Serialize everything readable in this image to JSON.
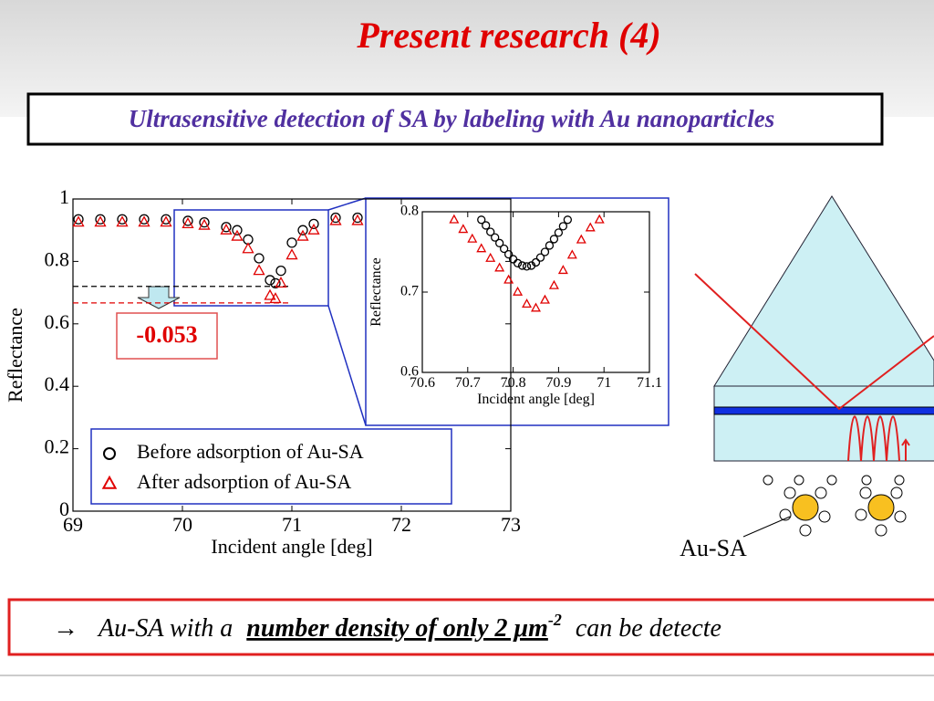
{
  "slide": {
    "title": "Present research (4)",
    "subtitle": "Ultrasensitive detection of SA by labeling with Au nanoparticles",
    "diagram_label": "Au-SA",
    "note": {
      "arrow": "→",
      "lead": "Au-SA with a",
      "emphasis": "number density of only 2 μm",
      "superscript": "-2",
      "tail": "can be detecte"
    }
  },
  "chart_data": [
    {
      "type": "scatter",
      "xlabel": "Incident angle [deg]",
      "ylabel": "Reflectance",
      "xlim": [
        69,
        73
      ],
      "ylim": [
        0,
        1
      ],
      "xticks": [
        69,
        70,
        71,
        72,
        73
      ],
      "yticks": [
        0,
        0.2,
        0.4,
        0.6,
        0.8,
        1
      ],
      "legend": "lower center",
      "annotation": "-0.053",
      "hlines": [
        {
          "value": 0.72,
          "color": "#000000"
        },
        {
          "value": 0.667,
          "color": "#e00000"
        }
      ],
      "series": [
        {
          "name": "Before adsorption of Au-SA",
          "color": "#000000",
          "marker": "circle",
          "x": [
            69.05,
            69.25,
            69.45,
            69.65,
            69.85,
            70.05,
            70.2,
            70.4,
            70.5,
            70.6,
            70.7,
            70.8,
            70.85,
            70.9,
            71.0,
            71.1,
            71.2,
            71.4,
            71.6
          ],
          "values": [
            0.935,
            0.935,
            0.935,
            0.935,
            0.935,
            0.93,
            0.925,
            0.91,
            0.9,
            0.87,
            0.81,
            0.74,
            0.73,
            0.77,
            0.86,
            0.9,
            0.92,
            0.94,
            0.94
          ]
        },
        {
          "name": "After adsorption of Au-SA",
          "color": "#e00000",
          "marker": "triangle",
          "x": [
            69.05,
            69.25,
            69.45,
            69.65,
            69.85,
            70.05,
            70.2,
            70.4,
            70.5,
            70.6,
            70.7,
            70.8,
            70.85,
            70.9,
            71.0,
            71.1,
            71.2,
            71.4,
            71.6
          ],
          "values": [
            0.925,
            0.925,
            0.925,
            0.925,
            0.925,
            0.92,
            0.915,
            0.9,
            0.88,
            0.84,
            0.77,
            0.69,
            0.68,
            0.73,
            0.82,
            0.88,
            0.9,
            0.93,
            0.93
          ]
        }
      ]
    },
    {
      "type": "scatter",
      "xlabel": "Incident angle [deg]",
      "ylabel": "Reflectance",
      "xlim": [
        70.6,
        71.1
      ],
      "ylim": [
        0.6,
        0.8
      ],
      "xticks": [
        70.6,
        70.7,
        70.8,
        70.9,
        71,
        71.1
      ],
      "yticks": [
        0.6,
        0.7,
        0.8
      ],
      "series": [
        {
          "color": "#000000",
          "marker": "circle",
          "x": [
            70.73,
            70.74,
            70.75,
            70.76,
            70.77,
            70.78,
            70.79,
            70.8,
            70.81,
            70.82,
            70.83,
            70.84,
            70.85,
            70.86,
            70.87,
            70.88,
            70.89,
            70.9,
            70.91,
            70.92
          ],
          "values": [
            0.79,
            0.783,
            0.775,
            0.768,
            0.761,
            0.754,
            0.747,
            0.741,
            0.736,
            0.733,
            0.732,
            0.733,
            0.737,
            0.743,
            0.75,
            0.758,
            0.766,
            0.774,
            0.782,
            0.79
          ]
        },
        {
          "color": "#e00000",
          "marker": "triangle",
          "x": [
            70.67,
            70.69,
            70.71,
            70.73,
            70.75,
            70.77,
            70.79,
            70.81,
            70.83,
            70.85,
            70.87,
            70.89,
            70.91,
            70.93,
            70.95,
            70.97,
            70.99
          ],
          "values": [
            0.79,
            0.778,
            0.766,
            0.754,
            0.742,
            0.73,
            0.715,
            0.7,
            0.685,
            0.68,
            0.69,
            0.708,
            0.727,
            0.746,
            0.765,
            0.78,
            0.79
          ]
        }
      ]
    }
  ]
}
